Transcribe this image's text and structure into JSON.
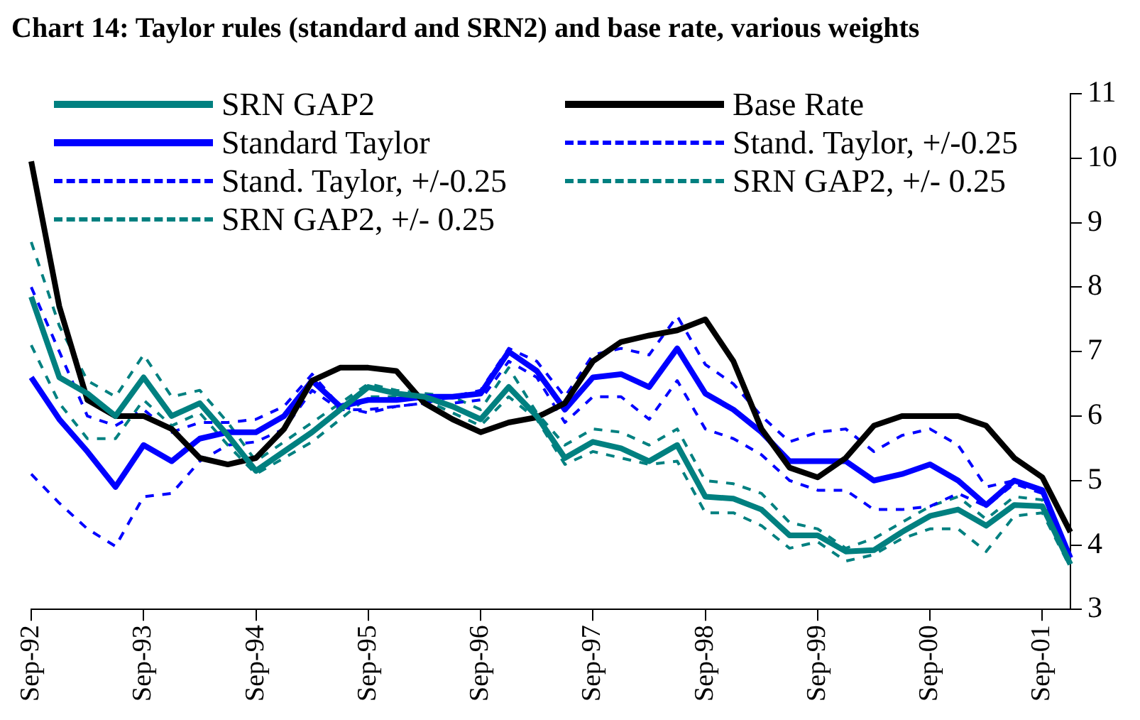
{
  "chart_data": {
    "type": "line",
    "title": "Chart 14: Taylor rules (standard and SRN2) and base rate, various weights",
    "categories": [
      "Sep-92",
      null,
      null,
      null,
      "Sep-93",
      null,
      null,
      null,
      "Sep-94",
      null,
      null,
      null,
      "Sep-95",
      null,
      null,
      null,
      "Sep-96",
      null,
      null,
      null,
      "Sep-97",
      null,
      null,
      null,
      "Sep-98",
      null,
      null,
      null,
      "Sep-99",
      null,
      null,
      null,
      "Sep-00",
      null,
      null,
      null,
      "Sep-01",
      null
    ],
    "series": [
      {
        "name": "SRN GAP2",
        "color": "#008080",
        "line_style": "solid",
        "values": [
          7.85,
          6.6,
          6.35,
          6.0,
          6.6,
          6.0,
          6.2,
          5.7,
          5.15,
          5.45,
          5.75,
          6.1,
          6.45,
          6.35,
          6.3,
          6.15,
          5.95,
          6.45,
          6.0,
          5.35,
          5.6,
          5.5,
          5.3,
          5.55,
          4.75,
          4.72,
          4.55,
          4.15,
          4.15,
          3.9,
          3.92,
          4.2,
          4.45,
          4.55,
          4.3,
          4.62,
          4.6,
          3.7
        ]
      },
      {
        "name": "Base Rate",
        "color": "#000000",
        "line_style": "solid",
        "values": [
          9.95,
          7.7,
          6.25,
          6.0,
          6.0,
          5.8,
          5.35,
          5.25,
          5.35,
          5.8,
          6.55,
          6.75,
          6.75,
          6.7,
          6.2,
          5.95,
          5.75,
          5.9,
          5.98,
          6.2,
          6.85,
          7.15,
          7.25,
          7.33,
          7.5,
          6.85,
          5.8,
          5.2,
          5.05,
          5.35,
          5.85,
          6.0,
          6.0,
          6.0,
          5.85,
          5.35,
          5.05,
          4.2
        ]
      },
      {
        "name": "Standard Taylor",
        "color": "#0000ff",
        "line_style": "solid",
        "values": [
          6.6,
          5.95,
          5.45,
          4.9,
          5.55,
          5.3,
          5.65,
          5.75,
          5.75,
          6.0,
          6.55,
          6.15,
          6.25,
          6.25,
          6.3,
          6.3,
          6.35,
          7.0,
          6.7,
          6.1,
          6.6,
          6.65,
          6.45,
          7.05,
          6.35,
          6.1,
          5.75,
          5.3,
          5.3,
          5.3,
          5.0,
          5.1,
          5.25,
          5.0,
          4.62,
          5.0,
          4.85,
          3.8
        ]
      },
      {
        "name": "Stand. Taylor, +/-0.25",
        "color": "#0000ff",
        "line_style": "dashed",
        "values": [
          8.0,
          7.0,
          6.0,
          5.85,
          6.1,
          5.75,
          5.9,
          5.9,
          5.95,
          6.15,
          6.65,
          6.15,
          6.05,
          6.15,
          6.2,
          6.3,
          6.4,
          7.05,
          6.85,
          6.3,
          6.95,
          7.05,
          6.95,
          7.55,
          6.8,
          6.5,
          6.0,
          5.6,
          5.75,
          5.8,
          5.45,
          5.7,
          5.8,
          5.55,
          4.9,
          5.0,
          4.85,
          3.8
        ]
      },
      {
        "name": "Stand. Taylor, +/-0.25",
        "color": "#0000ff",
        "line_style": "dashed",
        "values": [
          5.1,
          4.65,
          4.25,
          3.98,
          4.75,
          4.8,
          5.3,
          5.55,
          5.6,
          5.8,
          6.4,
          6.1,
          6.1,
          6.15,
          6.2,
          6.2,
          6.25,
          6.85,
          6.6,
          5.9,
          6.3,
          6.3,
          5.95,
          6.55,
          5.8,
          5.65,
          5.4,
          5.0,
          4.85,
          4.85,
          4.55,
          4.55,
          4.6,
          4.8,
          4.6,
          4.95,
          4.8,
          3.75
        ]
      },
      {
        "name": "SRN GAP2, +/- 0.25",
        "color": "#008080",
        "line_style": "dashed",
        "values": [
          8.7,
          7.4,
          6.55,
          6.3,
          6.95,
          6.3,
          6.4,
          5.9,
          5.3,
          5.6,
          5.9,
          6.2,
          6.5,
          6.4,
          6.35,
          6.3,
          6.1,
          6.75,
          6.05,
          5.55,
          5.8,
          5.75,
          5.55,
          5.8,
          5.0,
          4.95,
          4.8,
          4.35,
          4.25,
          3.95,
          4.1,
          4.35,
          4.6,
          4.75,
          4.4,
          4.75,
          4.7,
          3.7
        ]
      },
      {
        "name": "SRN GAP2, +/- 0.25",
        "color": "#008080",
        "line_style": "dashed",
        "values": [
          7.1,
          6.2,
          5.65,
          5.65,
          6.25,
          5.85,
          6.05,
          5.55,
          5.1,
          5.35,
          5.6,
          5.95,
          6.3,
          6.3,
          6.25,
          6.05,
          5.85,
          6.3,
          5.95,
          5.25,
          5.45,
          5.35,
          5.25,
          5.3,
          4.5,
          4.5,
          4.3,
          3.95,
          4.05,
          3.75,
          3.85,
          4.1,
          4.25,
          4.25,
          3.9,
          4.45,
          4.5,
          3.65
        ]
      }
    ],
    "ylim": [
      3,
      11
    ],
    "yticks": [
      3,
      4,
      5,
      6,
      7,
      8,
      9,
      10,
      11
    ],
    "grid": false,
    "legend": "top",
    "marker": "none"
  }
}
